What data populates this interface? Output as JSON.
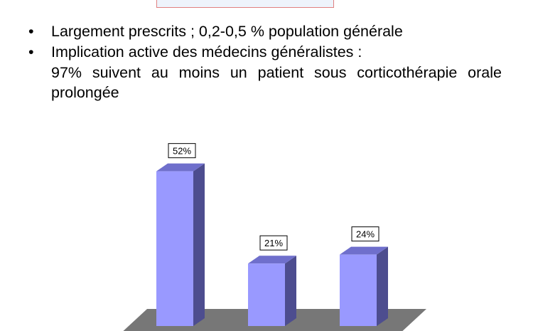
{
  "bullets": {
    "glyph": "•",
    "item1": "Largement prescrits ; 0,2-0,5 % population générale",
    "item2": "Implication active des médecins généralistes :",
    "item2_detail": "97% suivent au moins un patient sous corticothérapie orale prolongée"
  },
  "colors": {
    "bar_front": "#9999ff",
    "bar_top": "#6f6fcc",
    "bar_side": "#4d4d8f",
    "floor": "#777777",
    "title_box_border": "#e08080",
    "title_box_fill": "#eef3fb"
  },
  "chart_data": {
    "type": "bar",
    "categories": [
      "",
      "",
      ""
    ],
    "values": [
      52,
      21,
      24
    ],
    "labels": [
      "52%",
      "21%",
      "24%"
    ],
    "unit": "%",
    "title": "",
    "xlabel": "",
    "ylabel": "",
    "ylim": [
      0,
      60
    ],
    "grid": false,
    "legend": "none",
    "style": "3d-column"
  }
}
